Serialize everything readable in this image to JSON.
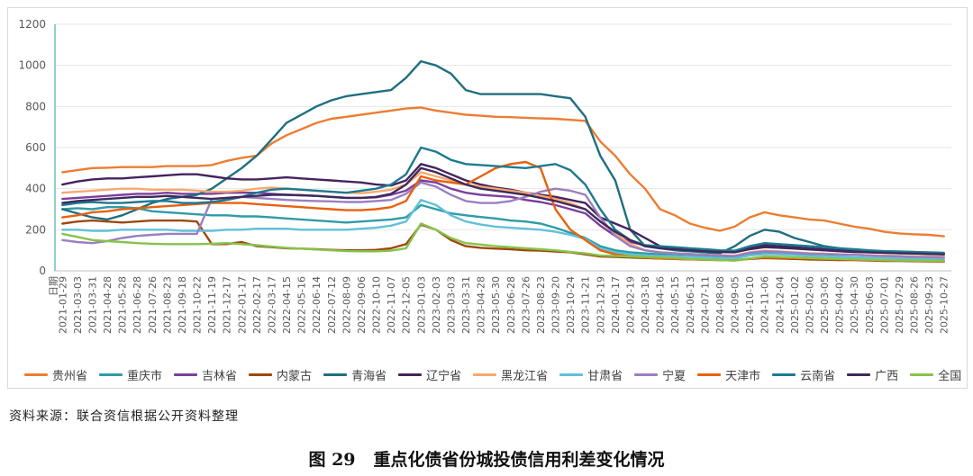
{
  "source_note": "资料来源：联合资信根据公开资料整理",
  "figure": {
    "label": "图 29",
    "title": "重点化债省份城投债信用利差变化情况"
  },
  "chart_data": {
    "type": "line",
    "title": "",
    "xlabel": "",
    "ylabel": "",
    "ylim": [
      0,
      1200
    ],
    "yticks": [
      0,
      200,
      400,
      600,
      800,
      1000,
      1200
    ],
    "x_first_label": "日期",
    "x_tick_labels": [
      "2021-01-29",
      "2021-03-03",
      "2021-03-31",
      "2021-04-28",
      "2021-05-28",
      "2021-06-28",
      "2021-07-26",
      "2021-08-23",
      "2021-09-18",
      "2021-10-22",
      "2021-11-19",
      "2021-12-17",
      "2022-01-17",
      "2022-02-17",
      "2022-03-17",
      "2022-04-15",
      "2022-05-16",
      "2022-06-14",
      "2022-07-12",
      "2022-08-09",
      "2022-09-06",
      "2022-10-10",
      "2022-11-07",
      "2022-12-05",
      "2023-01-03",
      "2023-02-03",
      "2023-03-03",
      "2023-03-31",
      "2023-04-28",
      "2023-05-30",
      "2023-06-28",
      "2023-07-26",
      "2023-08-23",
      "2023-09-20",
      "2023-10-24",
      "2023-11-21",
      "2023-12-19",
      "2024-01-17",
      "2024-02-19",
      "2024-03-18",
      "2024-04-16",
      "2024-05-15",
      "2024-06-13",
      "2024-07-11",
      "2024-08-08",
      "2024-09-05",
      "2024-10-10",
      "2024-11-06",
      "2024-12-04",
      "2025-01-02",
      "2025-02-06",
      "2025-03-05",
      "2025-04-02",
      "2025-04-30",
      "2025-06-03",
      "2025-07-01",
      "2025-07-29",
      "2025-08-26",
      "2025-09-23",
      "2025-10-27"
    ],
    "grid": true,
    "legend_position": "bottom",
    "series": [
      {
        "name": "贵州省",
        "color": "#ED7D31",
        "values": [
          480,
          490,
          500,
          502,
          505,
          505,
          505,
          510,
          510,
          510,
          515,
          535,
          550,
          560,
          620,
          660,
          690,
          720,
          740,
          750,
          760,
          770,
          780,
          790,
          795,
          780,
          770,
          760,
          755,
          750,
          748,
          745,
          742,
          740,
          735,
          730,
          630,
          560,
          470,
          400,
          300,
          270,
          230,
          210,
          195,
          215,
          260,
          285,
          270,
          260,
          250,
          245,
          230,
          215,
          205,
          190,
          182,
          178,
          175,
          168
        ]
      },
      {
        "name": "重庆市",
        "color": "#2E9CA6",
        "values": [
          300,
          305,
          300,
          310,
          310,
          305,
          290,
          285,
          280,
          275,
          270,
          270,
          265,
          265,
          260,
          255,
          250,
          245,
          240,
          235,
          240,
          245,
          250,
          260,
          320,
          300,
          280,
          270,
          262,
          255,
          245,
          240,
          230,
          210,
          185,
          160,
          120,
          100,
          90,
          85,
          80,
          80,
          78,
          75,
          72,
          70,
          85,
          90,
          90,
          85,
          82,
          80,
          78,
          78,
          75,
          72,
          72,
          70,
          68,
          68
        ]
      },
      {
        "name": "吉林省",
        "color": "#7B3F9E",
        "values": [
          350,
          355,
          360,
          365,
          370,
          375,
          375,
          380,
          375,
          375,
          375,
          380,
          380,
          380,
          375,
          370,
          368,
          365,
          360,
          355,
          355,
          358,
          370,
          390,
          440,
          430,
          400,
          380,
          370,
          365,
          360,
          345,
          335,
          320,
          300,
          280,
          220,
          170,
          140,
          125,
          115,
          110,
          105,
          100,
          95,
          92,
          110,
          120,
          115,
          110,
          105,
          100,
          95,
          92,
          90,
          88,
          86,
          85,
          84,
          82
        ]
      },
      {
        "name": "内蒙古",
        "color": "#9E480E",
        "values": [
          230,
          240,
          245,
          240,
          235,
          240,
          245,
          245,
          245,
          240,
          130,
          130,
          140,
          120,
          115,
          110,
          108,
          105,
          102,
          100,
          100,
          102,
          110,
          130,
          225,
          200,
          150,
          120,
          112,
          108,
          105,
          100,
          98,
          94,
          90,
          80,
          70,
          68,
          65,
          62,
          60,
          58,
          56,
          54,
          52,
          52,
          58,
          62,
          60,
          58,
          55,
          54,
          52,
          52,
          50,
          48,
          48,
          47,
          46,
          45
        ]
      },
      {
        "name": "青海省",
        "color": "#1F6F7F",
        "values": [
          300,
          280,
          260,
          250,
          270,
          300,
          330,
          350,
          360,
          370,
          400,
          450,
          500,
          560,
          640,
          720,
          760,
          800,
          830,
          850,
          860,
          870,
          880,
          940,
          1020,
          1000,
          960,
          880,
          860,
          860,
          860,
          860,
          860,
          850,
          840,
          750,
          560,
          440,
          200,
          120,
          110,
          100,
          95,
          90,
          85,
          120,
          170,
          200,
          190,
          160,
          140,
          120,
          110,
          100,
          95,
          90,
          88,
          86,
          84,
          80
        ]
      },
      {
        "name": "辽宁省",
        "color": "#44235E",
        "values": [
          420,
          435,
          445,
          450,
          450,
          455,
          460,
          465,
          470,
          470,
          460,
          450,
          445,
          445,
          450,
          455,
          450,
          445,
          440,
          435,
          430,
          420,
          415,
          440,
          520,
          500,
          470,
          440,
          420,
          405,
          395,
          380,
          370,
          360,
          345,
          330,
          260,
          230,
          200,
          160,
          120,
          110,
          105,
          100,
          95,
          92,
          110,
          125,
          120,
          115,
          110,
          105,
          100,
          95,
          92,
          90,
          88,
          86,
          84,
          82
        ]
      },
      {
        "name": "黑龙江省",
        "color": "#F8A86E",
        "values": [
          380,
          385,
          390,
          395,
          400,
          400,
          395,
          395,
          395,
          390,
          385,
          385,
          390,
          400,
          405,
          400,
          395,
          390,
          385,
          380,
          378,
          385,
          395,
          420,
          480,
          460,
          440,
          420,
          410,
          400,
          390,
          380,
          365,
          350,
          330,
          300,
          240,
          180,
          130,
          100,
          90,
          85,
          82,
          78,
          76,
          74,
          90,
          98,
          95,
          90,
          86,
          84,
          80,
          78,
          76,
          74,
          72,
          71,
          70,
          68
        ]
      },
      {
        "name": "甘肃省",
        "color": "#62C0D9",
        "values": [
          200,
          200,
          195,
          195,
          200,
          200,
          200,
          200,
          195,
          195,
          195,
          200,
          200,
          205,
          205,
          205,
          200,
          200,
          200,
          200,
          205,
          210,
          220,
          240,
          345,
          320,
          270,
          240,
          225,
          215,
          210,
          205,
          200,
          190,
          175,
          155,
          110,
          90,
          80,
          75,
          72,
          70,
          68,
          65,
          62,
          60,
          75,
          82,
          80,
          76,
          72,
          70,
          68,
          66,
          64,
          62,
          60,
          60,
          58,
          57
        ]
      },
      {
        "name": "宁夏",
        "color": "#9A7FC0",
        "values": [
          150,
          140,
          135,
          145,
          160,
          170,
          175,
          180,
          180,
          180,
          350,
          355,
          360,
          355,
          350,
          345,
          342,
          340,
          338,
          335,
          335,
          340,
          345,
          375,
          430,
          410,
          370,
          340,
          330,
          330,
          340,
          360,
          385,
          400,
          390,
          370,
          260,
          170,
          120,
          100,
          90,
          86,
          82,
          78,
          75,
          72,
          88,
          95,
          92,
          88,
          84,
          82,
          80,
          78,
          75,
          72,
          70,
          68,
          67,
          65
        ]
      },
      {
        "name": "天津市",
        "color": "#E8610F",
        "values": [
          260,
          270,
          285,
          290,
          300,
          305,
          310,
          315,
          320,
          325,
          330,
          330,
          330,
          325,
          320,
          315,
          310,
          305,
          300,
          295,
          295,
          300,
          310,
          340,
          460,
          440,
          430,
          420,
          460,
          500,
          520,
          530,
          500,
          300,
          200,
          150,
          100,
          80,
          70,
          65,
          60,
          58,
          56,
          54,
          52,
          50,
          60,
          66,
          64,
          62,
          60,
          58,
          56,
          54,
          52,
          50,
          50,
          49,
          48,
          48
        ]
      },
      {
        "name": "云南省",
        "color": "#1D7A90",
        "values": [
          320,
          330,
          335,
          330,
          330,
          335,
          340,
          340,
          330,
          330,
          335,
          345,
          360,
          380,
          395,
          400,
          395,
          390,
          385,
          380,
          390,
          400,
          420,
          470,
          600,
          580,
          540,
          520,
          515,
          510,
          505,
          500,
          510,
          520,
          490,
          420,
          300,
          200,
          150,
          125,
          120,
          115,
          110,
          105,
          100,
          98,
          120,
          135,
          130,
          125,
          120,
          115,
          110,
          105,
          100,
          96,
          94,
          92,
          90,
          88
        ]
      },
      {
        "name": "广西",
        "color": "#3D2A5B",
        "values": [
          330,
          340,
          345,
          350,
          355,
          360,
          360,
          365,
          360,
          355,
          350,
          355,
          360,
          365,
          370,
          370,
          368,
          365,
          360,
          355,
          355,
          360,
          375,
          420,
          500,
          480,
          450,
          420,
          400,
          390,
          380,
          370,
          355,
          340,
          320,
          300,
          240,
          190,
          150,
          120,
          110,
          105,
          100,
          95,
          92,
          90,
          105,
          115,
          112,
          108,
          104,
          100,
          96,
          92,
          90,
          88,
          86,
          84,
          82,
          80
        ]
      },
      {
        "name": "全国",
        "color": "#86C34A",
        "values": [
          180,
          165,
          150,
          145,
          140,
          135,
          132,
          130,
          130,
          130,
          132,
          135,
          130,
          125,
          118,
          112,
          108,
          104,
          100,
          96,
          95,
          95,
          98,
          110,
          230,
          200,
          160,
          135,
          128,
          120,
          115,
          110,
          105,
          100,
          92,
          85,
          75,
          72,
          70,
          68,
          65,
          62,
          58,
          55,
          52,
          50,
          60,
          70,
          68,
          65,
          62,
          60,
          58,
          56,
          54,
          52,
          50,
          50,
          49,
          48
        ]
      }
    ]
  }
}
